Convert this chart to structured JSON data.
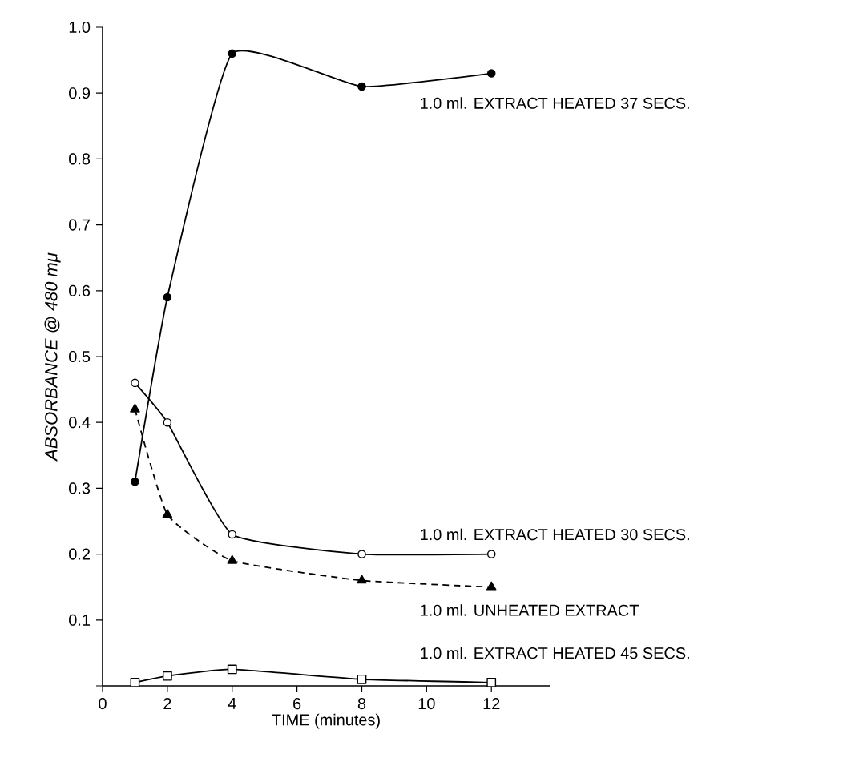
{
  "chart_data": {
    "type": "line",
    "xlabel": "TIME (minutes)",
    "ylabel": "ABSORBANCE @ 480 mμ",
    "x": [
      1,
      2,
      4,
      8,
      12
    ],
    "series": [
      {
        "name": "1.0 ml. EXTRACT HEATED 37 SECS.",
        "color": "#000000",
        "marker": "circle",
        "values": [
          0.31,
          0.59,
          0.96,
          0.91,
          0.93
        ]
      },
      {
        "name": "1.0 ml. EXTRACT HEATED 30 SECS.",
        "color": "#000000",
        "marker": "circle",
        "values": [
          0.46,
          0.4,
          0.23,
          0.2,
          0.2
        ]
      },
      {
        "name": "1.0 ml. UNHEATED EXTRACT",
        "color": "#000000",
        "marker": "triangle",
        "line_style": "dashed",
        "values": [
          0.42,
          0.26,
          0.19,
          0.16,
          0.15
        ]
      },
      {
        "name": "1.0 ml. EXTRACT HEATED 45 SECS.",
        "color": "#000000",
        "marker": "square",
        "values": [
          0.005,
          0.015,
          0.025,
          0.01,
          0.005
        ]
      }
    ],
    "xlim": [
      0,
      13.8
    ],
    "ylim": [
      0,
      1.0
    ],
    "xticks": [
      0,
      2,
      4,
      6,
      8,
      10,
      12
    ],
    "yticks": [
      {
        "value": 0,
        "label": null
      },
      0.1,
      0.2,
      0.3,
      0.4,
      0.5,
      0.6,
      0.7,
      0.8,
      0.9,
      {
        "value": 1.0,
        "label": "1.0"
      }
    ],
    "grid": false,
    "legend": false
  }
}
